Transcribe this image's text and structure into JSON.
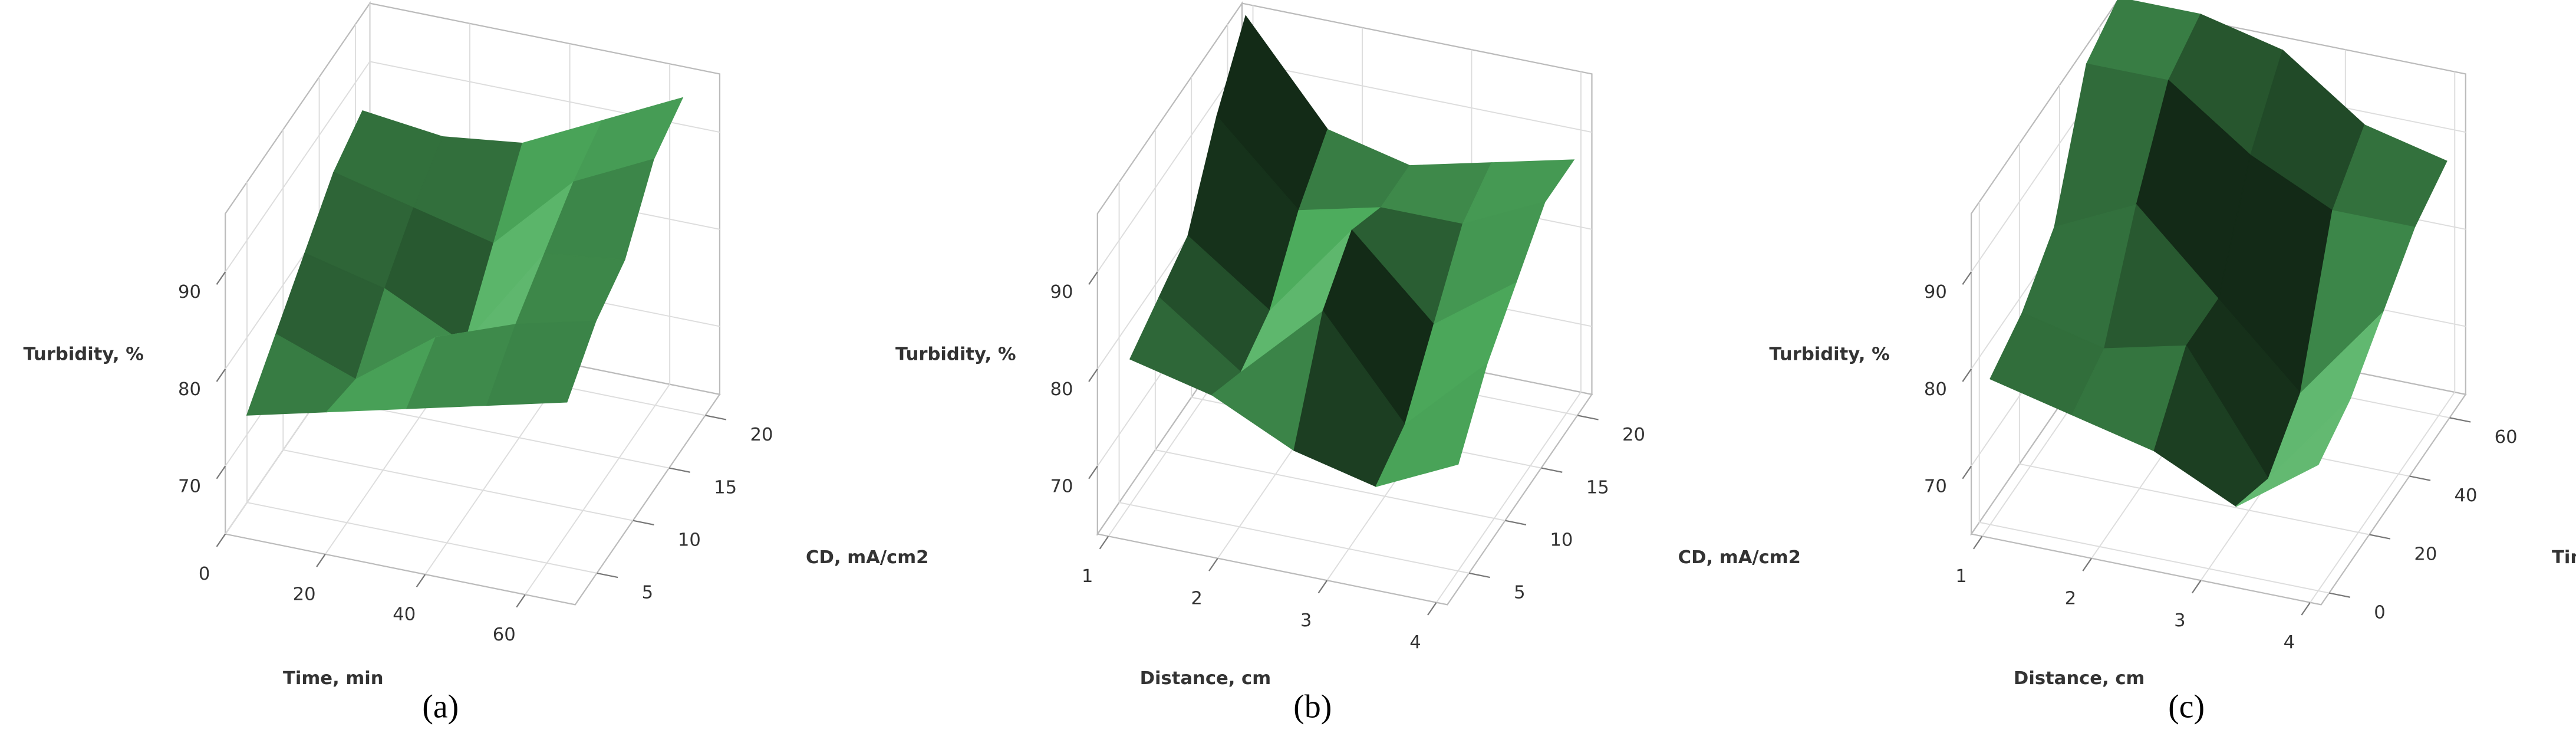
{
  "chart_data": [
    {
      "type": "surface",
      "caption": "(a)",
      "xlabel": "Time, min",
      "ylabel": "CD, mA/cm2",
      "zlabel": "Turbidity, %",
      "xlim": [
        0,
        70
      ],
      "xticks": [
        0,
        20,
        40,
        60
      ],
      "ylim": [
        2,
        22
      ],
      "yticks": [
        5,
        10,
        15,
        20
      ],
      "zlim": [
        63,
        96
      ],
      "zticks": [
        70,
        80,
        90
      ],
      "color": "#3f8a4c",
      "surface": {
        "x": [
          0,
          16,
          32,
          48,
          64
        ],
        "y": [
          5,
          9,
          13,
          17,
          21
        ],
        "z": [
          [
            72,
            74,
            76,
            78,
            80
          ],
          [
            76,
            73,
            79,
            82,
            84
          ],
          [
            80,
            78,
            74,
            85,
            86
          ],
          [
            84,
            82,
            80,
            88,
            92
          ],
          [
            86,
            85,
            86,
            90,
            94
          ]
        ]
      }
    },
    {
      "type": "surface",
      "caption": "(b)",
      "xlabel": "Distance, cm",
      "ylabel": "CD, mA/cm2",
      "zlabel": "Turbidity, %",
      "xlim": [
        0.9,
        4.1
      ],
      "xticks": [
        1,
        2,
        3,
        4
      ],
      "ylim": [
        2,
        22
      ],
      "yticks": [
        5,
        10,
        15,
        20
      ],
      "zlim": [
        63,
        96
      ],
      "zticks": [
        70,
        80,
        90
      ],
      "color": "#3f8a4c",
      "surface": {
        "x": [
          1,
          1.75,
          2.5,
          3.25,
          4
        ],
        "y": [
          5,
          9,
          13,
          17,
          21
        ],
        "z": [
          [
            78,
            76,
            72,
            70,
            74
          ],
          [
            80,
            74,
            82,
            72,
            80
          ],
          [
            82,
            76,
            86,
            78,
            84
          ],
          [
            90,
            82,
            84,
            84,
            88
          ],
          [
            96,
            86,
            84,
            86,
            88
          ]
        ]
      }
    },
    {
      "type": "surface",
      "caption": "(c)",
      "xlabel": "Distance, cm",
      "ylabel": "Time, min",
      "zlabel": "Turbidity, %",
      "xlim": [
        0.9,
        4.1
      ],
      "xticks": [
        1,
        2,
        3,
        4
      ],
      "ylim": [
        -4,
        68
      ],
      "yticks": [
        0,
        20,
        40,
        60
      ],
      "zlim": [
        63,
        96
      ],
      "zticks": [
        70,
        80,
        90
      ],
      "color": "#3f8a4c",
      "surface": {
        "x": [
          1,
          1.75,
          2.5,
          3.25,
          4
        ],
        "y": [
          0,
          16,
          32,
          48,
          64
        ],
        "z": [
          [
            78,
            76,
            74,
            70,
            76
          ],
          [
            80,
            78,
            80,
            68,
            78
          ],
          [
            84,
            88,
            80,
            72,
            82
          ],
          [
            96,
            96,
            90,
            86,
            86
          ],
          [
            98,
            98,
            96,
            90,
            88
          ]
        ]
      }
    }
  ]
}
